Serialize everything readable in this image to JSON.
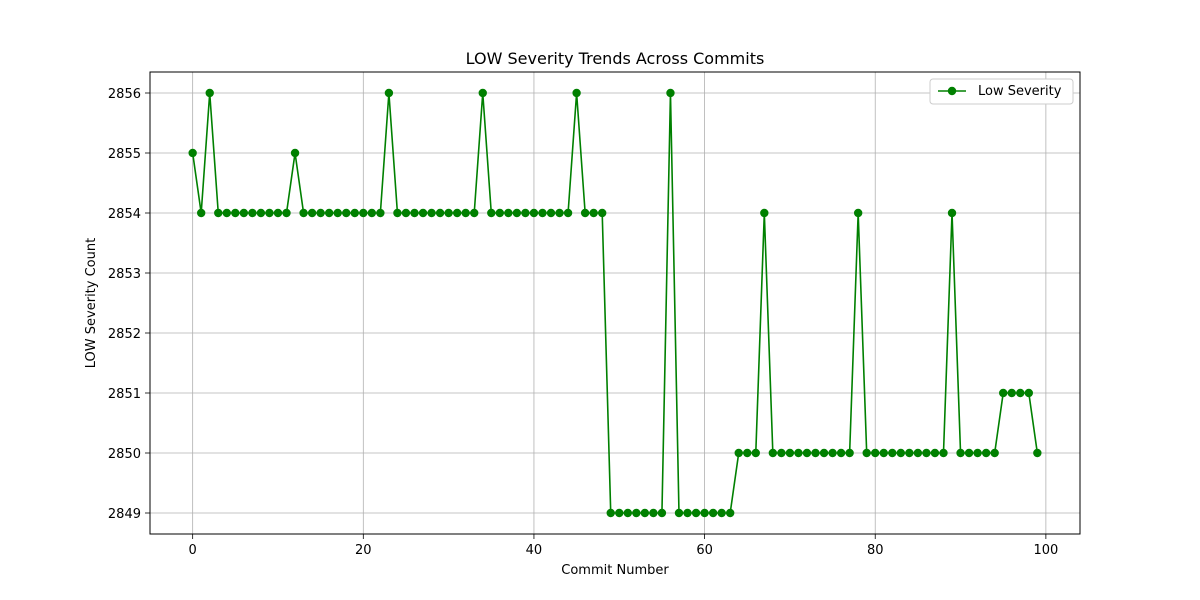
{
  "chart_data": {
    "type": "line",
    "title": "LOW Severity Trends Across Commits",
    "xlabel": "Commit Number",
    "ylabel": "LOW Severity Count",
    "xlim": [
      -5,
      104
    ],
    "ylim": [
      2848.65,
      2856.35
    ],
    "xticks": [
      0,
      20,
      40,
      60,
      80,
      100
    ],
    "yticks": [
      2849,
      2850,
      2851,
      2852,
      2853,
      2854,
      2855,
      2856
    ],
    "grid": true,
    "legend_position": "top-right",
    "series": [
      {
        "name": "Low Severity",
        "color": "#008000",
        "marker": "circle",
        "x": [
          0,
          1,
          2,
          3,
          4,
          5,
          6,
          7,
          8,
          9,
          10,
          11,
          12,
          13,
          14,
          15,
          16,
          17,
          18,
          19,
          20,
          21,
          22,
          23,
          24,
          25,
          26,
          27,
          28,
          29,
          30,
          31,
          32,
          33,
          34,
          35,
          36,
          37,
          38,
          39,
          40,
          41,
          42,
          43,
          44,
          45,
          46,
          47,
          48,
          49,
          50,
          51,
          52,
          53,
          54,
          55,
          56,
          57,
          58,
          59,
          60,
          61,
          62,
          63,
          64,
          65,
          66,
          67,
          68,
          69,
          70,
          71,
          72,
          73,
          74,
          75,
          76,
          77,
          78,
          79,
          80,
          81,
          82,
          83,
          84,
          85,
          86,
          87,
          88,
          89,
          90,
          91,
          92,
          93,
          94,
          95,
          96,
          97,
          98,
          99
        ],
        "values": [
          2855,
          2854,
          2856,
          2854,
          2854,
          2854,
          2854,
          2854,
          2854,
          2854,
          2854,
          2854,
          2855,
          2854,
          2854,
          2854,
          2854,
          2854,
          2854,
          2854,
          2854,
          2854,
          2854,
          2856,
          2854,
          2854,
          2854,
          2854,
          2854,
          2854,
          2854,
          2854,
          2854,
          2854,
          2856,
          2854,
          2854,
          2854,
          2854,
          2854,
          2854,
          2854,
          2854,
          2854,
          2854,
          2856,
          2854,
          2854,
          2854,
          2849,
          2849,
          2849,
          2849,
          2849,
          2849,
          2849,
          2856,
          2849,
          2849,
          2849,
          2849,
          2849,
          2849,
          2849,
          2850,
          2850,
          2850,
          2854,
          2850,
          2850,
          2850,
          2850,
          2850,
          2850,
          2850,
          2850,
          2850,
          2850,
          2854,
          2850,
          2850,
          2850,
          2850,
          2850,
          2850,
          2850,
          2850,
          2850,
          2850,
          2854,
          2850,
          2850,
          2850,
          2850,
          2850,
          2851,
          2851,
          2851,
          2851,
          2850
        ]
      }
    ]
  }
}
